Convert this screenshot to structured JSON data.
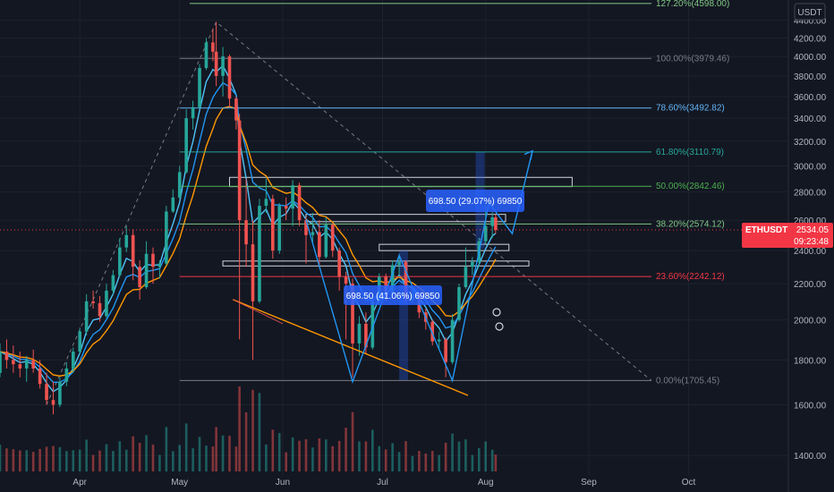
{
  "chart_data": {
    "type": "candlestick",
    "symbol": "ETHUSDT",
    "currency": "USDT",
    "y_scale": "log",
    "ylim": [
      1330,
      4640
    ],
    "y_ticks": [
      1400,
      1600,
      1800,
      2000,
      2200,
      2400,
      2600,
      2800,
      3000,
      3200,
      3400,
      3600,
      3800,
      4000,
      4200,
      4400
    ],
    "y_tick_labels": [
      "1400.00",
      "1600.00",
      "1800.00",
      "2000.00",
      "2200.00",
      "2400.00",
      "2600.00",
      "2800.00",
      "3000.00",
      "3200.00",
      "3400.00",
      "3600.00",
      "3800.00",
      "4000.00",
      "4200.00",
      "4400.00"
    ],
    "x_range": [
      "2021-03-08",
      "2021-10-31"
    ],
    "x_ticks": [
      {
        "date": "2021-04-01",
        "label": "Apr"
      },
      {
        "date": "2021-05-01",
        "label": "May"
      },
      {
        "date": "2021-06-01",
        "label": "Jun"
      },
      {
        "date": "2021-07-01",
        "label": "Jul"
      },
      {
        "date": "2021-08-01",
        "label": "Aug"
      },
      {
        "date": "2021-09-01",
        "label": "Sep"
      },
      {
        "date": "2021-10-01",
        "label": "Oct"
      }
    ],
    "currency_badge": "USDT",
    "fib_levels": [
      {
        "ratio": "127.20%",
        "price": 4598.0,
        "label": "127.20%(4598.00)",
        "color": "#81c784"
      },
      {
        "ratio": "100.00%",
        "price": 3979.46,
        "label": "100.00%(3979.46)",
        "color": "#787b86"
      },
      {
        "ratio": "78.60%",
        "price": 3492.82,
        "label": "78.60%(3492.82)",
        "color": "#64b5f6"
      },
      {
        "ratio": "61.80%",
        "price": 3110.79,
        "label": "61.80%(3110.79)",
        "color": "#26a69a"
      },
      {
        "ratio": "50.00%",
        "price": 2842.46,
        "label": "50.00%(2842.46)",
        "color": "#4caf50"
      },
      {
        "ratio": "38.20%",
        "price": 2574.12,
        "label": "38.20%(2574.12)",
        "color": "#81c784"
      },
      {
        "ratio": "23.60%",
        "price": 2242.12,
        "label": "23.60%(2242.12)",
        "color": "#f23645"
      },
      {
        "ratio": "0.00%",
        "price": 1705.45,
        "label": "0.00%(1705.45)",
        "color": "#787b86"
      }
    ],
    "last_price": {
      "symbol": "ETHUSDT",
      "price": "2534.05",
      "countdown": "09:23:48"
    },
    "measure_labels": [
      {
        "text": "698.50 (41.06%) 69850"
      },
      {
        "text": "698.50 (29.07%) 69850"
      }
    ],
    "candles": [
      {
        "date": "2021-03-08",
        "o": 1740,
        "h": 1880,
        "l": 1720,
        "c": 1840
      },
      {
        "date": "2021-03-10",
        "o": 1840,
        "h": 1900,
        "l": 1760,
        "c": 1800
      },
      {
        "date": "2021-03-12",
        "o": 1800,
        "h": 1870,
        "l": 1740,
        "c": 1780
      },
      {
        "date": "2021-03-14",
        "o": 1780,
        "h": 1840,
        "l": 1720,
        "c": 1760
      },
      {
        "date": "2021-03-16",
        "o": 1760,
        "h": 1820,
        "l": 1700,
        "c": 1800
      },
      {
        "date": "2021-03-18",
        "o": 1800,
        "h": 1850,
        "l": 1740,
        "c": 1760
      },
      {
        "date": "2021-03-20",
        "o": 1760,
        "h": 1800,
        "l": 1670,
        "c": 1690
      },
      {
        "date": "2021-03-22",
        "o": 1690,
        "h": 1740,
        "l": 1600,
        "c": 1620
      },
      {
        "date": "2021-03-24",
        "o": 1620,
        "h": 1700,
        "l": 1560,
        "c": 1600
      },
      {
        "date": "2021-03-26",
        "o": 1600,
        "h": 1720,
        "l": 1590,
        "c": 1700
      },
      {
        "date": "2021-03-28",
        "o": 1700,
        "h": 1790,
        "l": 1680,
        "c": 1760
      },
      {
        "date": "2021-03-30",
        "o": 1760,
        "h": 1860,
        "l": 1740,
        "c": 1840
      },
      {
        "date": "2021-04-01",
        "o": 1840,
        "h": 1960,
        "l": 1830,
        "c": 1940
      },
      {
        "date": "2021-04-03",
        "o": 1940,
        "h": 2140,
        "l": 1920,
        "c": 2100
      },
      {
        "date": "2021-04-05",
        "o": 2100,
        "h": 2160,
        "l": 2060,
        "c": 2090
      },
      {
        "date": "2021-04-07",
        "o": 2090,
        "h": 2130,
        "l": 1990,
        "c": 2020
      },
      {
        "date": "2021-04-09",
        "o": 2020,
        "h": 2200,
        "l": 2010,
        "c": 2160
      },
      {
        "date": "2021-04-11",
        "o": 2160,
        "h": 2280,
        "l": 2140,
        "c": 2250
      },
      {
        "date": "2021-04-13",
        "o": 2250,
        "h": 2480,
        "l": 2240,
        "c": 2420
      },
      {
        "date": "2021-04-15",
        "o": 2420,
        "h": 2560,
        "l": 2390,
        "c": 2500
      },
      {
        "date": "2021-04-17",
        "o": 2500,
        "h": 2540,
        "l": 2220,
        "c": 2300
      },
      {
        "date": "2021-04-19",
        "o": 2300,
        "h": 2340,
        "l": 2110,
        "c": 2180
      },
      {
        "date": "2021-04-21",
        "o": 2180,
        "h": 2460,
        "l": 2170,
        "c": 2380
      },
      {
        "date": "2021-04-23",
        "o": 2380,
        "h": 2420,
        "l": 2200,
        "c": 2300
      },
      {
        "date": "2021-04-25",
        "o": 2300,
        "h": 2340,
        "l": 2230,
        "c": 2320
      },
      {
        "date": "2021-04-27",
        "o": 2320,
        "h": 2700,
        "l": 2310,
        "c": 2660
      },
      {
        "date": "2021-04-29",
        "o": 2660,
        "h": 2820,
        "l": 2650,
        "c": 2760
      },
      {
        "date": "2021-05-01",
        "o": 2760,
        "h": 3000,
        "l": 2750,
        "c": 2950
      },
      {
        "date": "2021-05-03",
        "o": 2950,
        "h": 3480,
        "l": 2940,
        "c": 3400
      },
      {
        "date": "2021-05-05",
        "o": 3400,
        "h": 3560,
        "l": 3300,
        "c": 3500
      },
      {
        "date": "2021-05-07",
        "o": 3500,
        "h": 3920,
        "l": 3480,
        "c": 3880
      },
      {
        "date": "2021-05-09",
        "o": 3880,
        "h": 4200,
        "l": 3860,
        "c": 4150
      },
      {
        "date": "2021-05-11",
        "o": 4150,
        "h": 4300,
        "l": 3950,
        "c": 4050
      },
      {
        "date": "2021-05-12",
        "o": 4050,
        "h": 4380,
        "l": 3700,
        "c": 3800
      },
      {
        "date": "2021-05-14",
        "o": 3800,
        "h": 4100,
        "l": 3600,
        "c": 4000
      },
      {
        "date": "2021-05-16",
        "o": 4000,
        "h": 4020,
        "l": 3500,
        "c": 3580
      },
      {
        "date": "2021-05-18",
        "o": 3580,
        "h": 3600,
        "l": 3300,
        "c": 3380
      },
      {
        "date": "2021-05-19",
        "o": 3380,
        "h": 3440,
        "l": 1900,
        "c": 2600
      },
      {
        "date": "2021-05-21",
        "o": 2600,
        "h": 2900,
        "l": 2300,
        "c": 2440
      },
      {
        "date": "2021-05-23",
        "o": 2440,
        "h": 2600,
        "l": 1800,
        "c": 2100
      },
      {
        "date": "2021-05-25",
        "o": 2100,
        "h": 2750,
        "l": 2090,
        "c": 2700
      },
      {
        "date": "2021-05-27",
        "o": 2700,
        "h": 2900,
        "l": 2650,
        "c": 2750
      },
      {
        "date": "2021-05-29",
        "o": 2750,
        "h": 2780,
        "l": 2350,
        "c": 2400
      },
      {
        "date": "2021-05-31",
        "o": 2400,
        "h": 2720,
        "l": 2380,
        "c": 2700
      },
      {
        "date": "2021-06-02",
        "o": 2700,
        "h": 2760,
        "l": 2600,
        "c": 2680
      },
      {
        "date": "2021-06-04",
        "o": 2680,
        "h": 2890,
        "l": 2560,
        "c": 2850
      },
      {
        "date": "2021-06-06",
        "o": 2850,
        "h": 2870,
        "l": 2560,
        "c": 2600
      },
      {
        "date": "2021-06-08",
        "o": 2600,
        "h": 2620,
        "l": 2320,
        "c": 2500
      },
      {
        "date": "2021-06-10",
        "o": 2500,
        "h": 2650,
        "l": 2450,
        "c": 2520
      },
      {
        "date": "2021-06-12",
        "o": 2520,
        "h": 2600,
        "l": 2300,
        "c": 2360
      },
      {
        "date": "2021-06-14",
        "o": 2360,
        "h": 2620,
        "l": 2350,
        "c": 2570
      },
      {
        "date": "2021-06-16",
        "o": 2570,
        "h": 2580,
        "l": 2360,
        "c": 2400
      },
      {
        "date": "2021-06-18",
        "o": 2400,
        "h": 2420,
        "l": 2160,
        "c": 2240
      },
      {
        "date": "2021-06-20",
        "o": 2240,
        "h": 2270,
        "l": 1900,
        "c": 2200
      },
      {
        "date": "2021-06-22",
        "o": 2200,
        "h": 2230,
        "l": 1720,
        "c": 1880
      },
      {
        "date": "2021-06-24",
        "o": 1880,
        "h": 2020,
        "l": 1820,
        "c": 1980
      },
      {
        "date": "2021-06-26",
        "o": 1980,
        "h": 2040,
        "l": 1830,
        "c": 1860
      },
      {
        "date": "2021-06-28",
        "o": 1860,
        "h": 2140,
        "l": 1850,
        "c": 2100
      },
      {
        "date": "2021-06-30",
        "o": 2100,
        "h": 2260,
        "l": 2080,
        "c": 2240
      },
      {
        "date": "2021-07-02",
        "o": 2240,
        "h": 2260,
        "l": 2100,
        "c": 2140
      },
      {
        "date": "2021-07-04",
        "o": 2140,
        "h": 2340,
        "l": 2130,
        "c": 2310
      },
      {
        "date": "2021-07-06",
        "o": 2310,
        "h": 2380,
        "l": 2240,
        "c": 2330
      },
      {
        "date": "2021-07-08",
        "o": 2330,
        "h": 2340,
        "l": 2090,
        "c": 2110
      },
      {
        "date": "2021-07-10",
        "o": 2110,
        "h": 2180,
        "l": 2090,
        "c": 2140
      },
      {
        "date": "2021-07-12",
        "o": 2140,
        "h": 2150,
        "l": 2010,
        "c": 2040
      },
      {
        "date": "2021-07-14",
        "o": 2040,
        "h": 2060,
        "l": 1950,
        "c": 1990
      },
      {
        "date": "2021-07-16",
        "o": 1990,
        "h": 2000,
        "l": 1870,
        "c": 1890
      },
      {
        "date": "2021-07-18",
        "o": 1890,
        "h": 1940,
        "l": 1850,
        "c": 1900
      },
      {
        "date": "2021-07-20",
        "o": 1900,
        "h": 1910,
        "l": 1720,
        "c": 1790
      },
      {
        "date": "2021-07-22",
        "o": 1790,
        "h": 2030,
        "l": 1780,
        "c": 2000
      },
      {
        "date": "2021-07-24",
        "o": 2000,
        "h": 2200,
        "l": 1990,
        "c": 2180
      },
      {
        "date": "2021-07-26",
        "o": 2180,
        "h": 2420,
        "l": 2170,
        "c": 2300
      },
      {
        "date": "2021-07-28",
        "o": 2300,
        "h": 2360,
        "l": 2250,
        "c": 2330
      },
      {
        "date": "2021-07-30",
        "o": 2330,
        "h": 2480,
        "l": 2300,
        "c": 2460
      },
      {
        "date": "2021-08-01",
        "o": 2460,
        "h": 2700,
        "l": 2440,
        "c": 2560
      },
      {
        "date": "2021-08-03",
        "o": 2560,
        "h": 2660,
        "l": 2480,
        "c": 2620
      },
      {
        "date": "2021-08-04",
        "o": 2620,
        "h": 2640,
        "l": 2510,
        "c": 2534
      }
    ]
  }
}
